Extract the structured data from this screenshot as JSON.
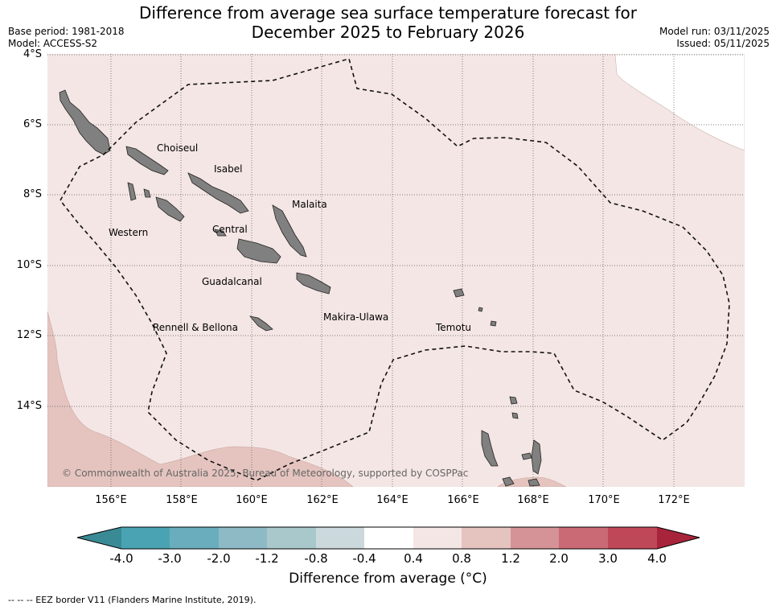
{
  "header": {
    "title_line1": "Difference from average sea surface temperature forecast for",
    "title_line2": "December 2025 to February 2026",
    "base_period": "Base period: 1981-2018",
    "model": "Model: ACCESS-S2",
    "model_run": "Model run: 03/11/2025",
    "issued": "Issued: 05/11/2025"
  },
  "map": {
    "lat_ticks": [
      "4°S",
      "6°S",
      "8°S",
      "10°S",
      "12°S",
      "14°S"
    ],
    "lon_ticks": [
      "156°E",
      "158°E",
      "160°E",
      "162°E",
      "164°E",
      "166°E",
      "168°E",
      "170°E",
      "172°E"
    ],
    "lat_range": [
      -16.3,
      -4.0
    ],
    "lon_range": [
      154.2,
      174.0
    ],
    "gridlines": true,
    "base_fill_color": "#f4e6e4",
    "warm_fill_color": "#e5c4bf",
    "land_color": "#808080",
    "province_labels": [
      "Choiseul",
      "Isabel",
      "Malaita",
      "Western",
      "Central",
      "Guadalcanal",
      "Makira-Ulawa",
      "Rennell & Bellona",
      "Temotu"
    ],
    "copyright": "© Commonwealth of Australia 2025, Bureau of Meteorology, supported by COSPPac"
  },
  "colorbar": {
    "tick_labels": [
      "-4.0",
      "-3.0",
      "-2.0",
      "-1.2",
      "-0.8",
      "-0.4",
      "0.4",
      "0.8",
      "1.2",
      "2.0",
      "3.0",
      "4.0"
    ],
    "colors": [
      "#3a8a96",
      "#4aa3b3",
      "#6aaebd",
      "#8dbac4",
      "#a9c8cc",
      "#cbd9dd",
      "#ffffff",
      "#f4e6e4",
      "#e5c4bf",
      "#d59398",
      "#c96a75",
      "#bf4858",
      "#a8243a"
    ],
    "label": "Difference from average (°C)"
  },
  "footnote": "--  --  -- EEZ border V11 (Flanders Marine Institute, 2019)."
}
